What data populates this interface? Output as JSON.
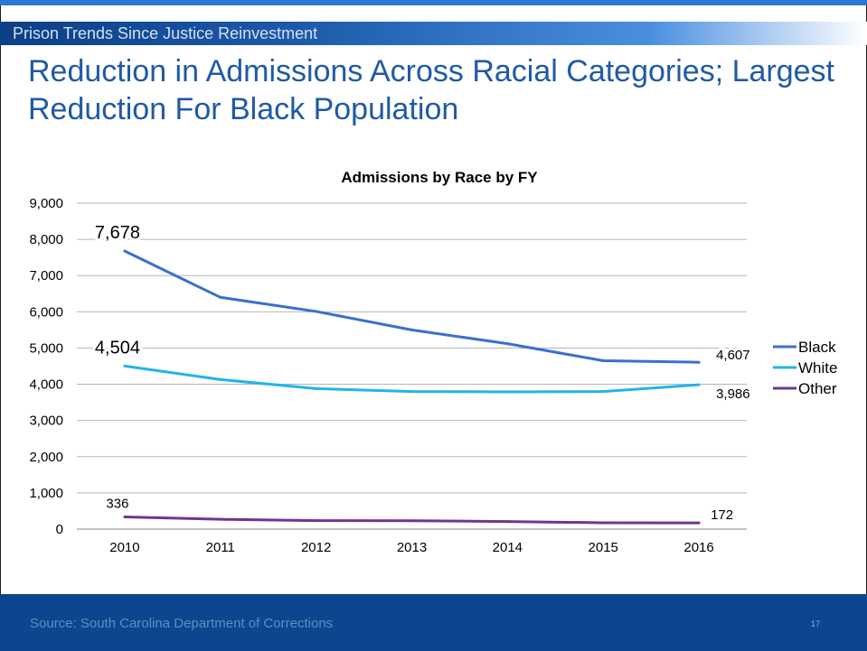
{
  "section_label": "Prison Trends Since Justice Reinvestment",
  "title": "Reduction in Admissions Across Racial Categories; Largest Reduction For Black Population",
  "footer": {
    "source": "Source: South Carolina Department of Corrections",
    "page_number": "17"
  },
  "colors": {
    "accent_blue": "#1f5aa6",
    "footer_blue": "#0d468f"
  },
  "chart_data": {
    "type": "line",
    "title": "Admissions by Race by FY",
    "xlabel": "",
    "ylabel": "",
    "categories": [
      "2010",
      "2011",
      "2012",
      "2013",
      "2014",
      "2015",
      "2016"
    ],
    "ylim": [
      0,
      9000
    ],
    "yticks": [
      0,
      1000,
      2000,
      3000,
      4000,
      5000,
      6000,
      7000,
      8000,
      9000
    ],
    "ytick_labels": [
      "0",
      "1,000",
      "2,000",
      "3,000",
      "4,000",
      "5,000",
      "6,000",
      "7,000",
      "8,000",
      "9,000"
    ],
    "grid": true,
    "legend_position": "right",
    "series": [
      {
        "name": "Black",
        "color": "#3a6fce",
        "values": [
          7678,
          6400,
          6010,
          5500,
          5120,
          4650,
          4607
        ],
        "data_labels": [
          {
            "index": 0,
            "text": "7,678"
          },
          {
            "index": 6,
            "text": "4,607"
          }
        ]
      },
      {
        "name": "White",
        "color": "#20b4ea",
        "values": [
          4504,
          4130,
          3880,
          3800,
          3790,
          3800,
          3986
        ],
        "data_labels": [
          {
            "index": 0,
            "text": "4,504"
          },
          {
            "index": 6,
            "text": "3,986"
          }
        ]
      },
      {
        "name": "Other",
        "color": "#6e3596",
        "values": [
          336,
          270,
          235,
          230,
          210,
          175,
          172
        ],
        "data_labels": [
          {
            "index": 0,
            "text": "336"
          },
          {
            "index": 6,
            "text": "172"
          }
        ]
      }
    ]
  }
}
